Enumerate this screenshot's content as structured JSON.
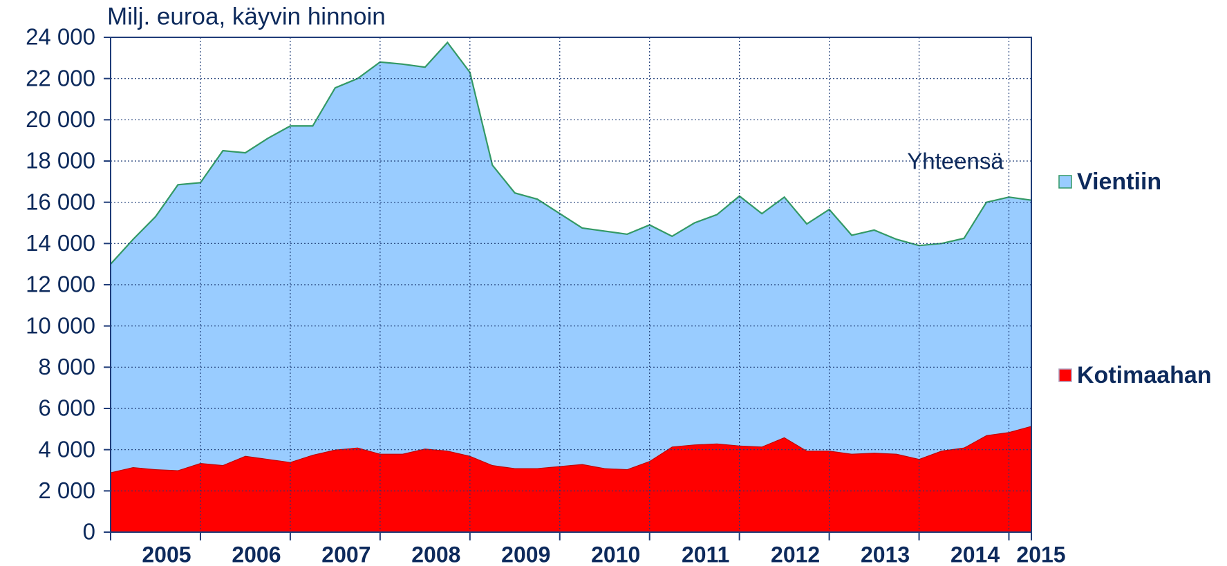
{
  "chart_data": {
    "type": "stacked_area",
    "y_axis_title": "Milj. euroa, käyvin hinnoin",
    "annotation": "Yhteensä",
    "categories": [
      null,
      null,
      "2005",
      null,
      null,
      null,
      "2006",
      null,
      null,
      null,
      "2007",
      null,
      null,
      null,
      "2008",
      null,
      null,
      null,
      "2009",
      null,
      null,
      null,
      "2010",
      null,
      null,
      null,
      "2011",
      null,
      null,
      null,
      "2012",
      null,
      null,
      null,
      "2013",
      null,
      null,
      null,
      "2014",
      null,
      null,
      "2015"
    ],
    "series": [
      {
        "name": "Kotimaahan",
        "color": "#ff0000",
        "values": [
          2900,
          3150,
          3050,
          3000,
          3350,
          3250,
          3700,
          3550,
          3400,
          3750,
          4000,
          4100,
          3800,
          3800,
          4050,
          3950,
          3700,
          3250,
          3100,
          3100,
          3200,
          3300,
          3100,
          3050,
          3450,
          4150,
          4250,
          4300,
          4200,
          4150,
          4600,
          3950,
          3950,
          3800,
          3850,
          3800,
          3550,
          3950,
          4100,
          4700,
          4850,
          5150
        ]
      },
      {
        "name": "Vientiin",
        "color": "#99ccff",
        "values": [
          10100,
          11050,
          12250,
          13850,
          13600,
          15250,
          14700,
          15550,
          16300,
          15950,
          17550,
          17900,
          19000,
          18900,
          18500,
          19800,
          18600,
          14550,
          13350,
          13050,
          12250,
          11450,
          11500,
          11400,
          11450,
          10200,
          10750,
          11100,
          12100,
          11300,
          11650,
          11000,
          11700,
          10600,
          10800,
          10400,
          10350,
          10050,
          10150,
          11300,
          11400,
          10950
        ]
      }
    ],
    "ylim": [
      0,
      24000
    ],
    "yticks": [
      0,
      {
        "value": 2000,
        "label": "2 000"
      },
      {
        "value": 4000,
        "label": "4 000"
      },
      {
        "value": 6000,
        "label": "6 000"
      },
      {
        "value": 8000,
        "label": "8 000"
      },
      {
        "value": 10000,
        "label": "10 000"
      },
      {
        "value": 12000,
        "label": "12 000"
      },
      {
        "value": 14000,
        "label": "14 000"
      },
      {
        "value": 16000,
        "label": "16 000"
      },
      {
        "value": 18000,
        "label": "18 000"
      },
      {
        "value": 20000,
        "label": "20 000"
      },
      {
        "value": 22000,
        "label": "22 000"
      },
      {
        "value": 24000,
        "label": "24 000"
      }
    ],
    "grid": true,
    "outline_color": "#339966"
  }
}
